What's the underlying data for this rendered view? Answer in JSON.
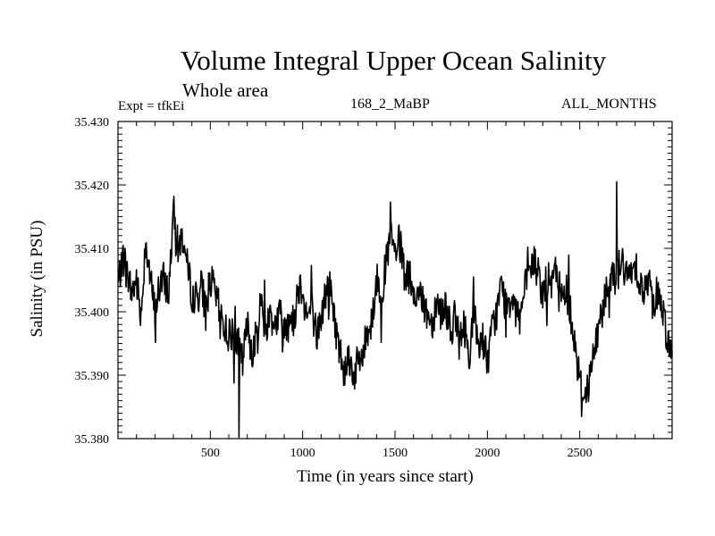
{
  "chart_data": {
    "type": "line",
    "title": "Volume Integral Upper Ocean Salinity",
    "subtitle": "Whole area",
    "annotations": {
      "left": "Expt = tfkEi",
      "center": "168_2_MaBP",
      "right": "ALL_MONTHS"
    },
    "xlabel": "Time (in years since start)",
    "ylabel": "Salinity (in PSU)",
    "xlim": [
      0,
      3000
    ],
    "ylim": [
      35.38,
      35.43
    ],
    "xticks": [
      500,
      1000,
      1500,
      2000,
      2500
    ],
    "yticks": [
      "35.380",
      "35.390",
      "35.400",
      "35.410",
      "35.420",
      "35.430"
    ],
    "grid": false,
    "series": [
      {
        "color": "#000000",
        "x": [
          0,
          25,
          50,
          75,
          100,
          125,
          150,
          175,
          200,
          225,
          250,
          275,
          300,
          325,
          350,
          375,
          400,
          425,
          450,
          475,
          500,
          525,
          550,
          575,
          600,
          625,
          650,
          675,
          700,
          725,
          750,
          775,
          800,
          825,
          850,
          875,
          900,
          925,
          950,
          975,
          1000,
          1025,
          1050,
          1075,
          1100,
          1125,
          1150,
          1175,
          1200,
          1225,
          1250,
          1275,
          1300,
          1325,
          1350,
          1375,
          1400,
          1425,
          1450,
          1475,
          1500,
          1525,
          1550,
          1575,
          1600,
          1625,
          1650,
          1675,
          1700,
          1725,
          1750,
          1775,
          1800,
          1825,
          1850,
          1875,
          1900,
          1925,
          1950,
          1975,
          2000,
          2025,
          2050,
          2075,
          2100,
          2125,
          2150,
          2175,
          2200,
          2225,
          2250,
          2275,
          2300,
          2325,
          2350,
          2375,
          2400,
          2425,
          2450,
          2475,
          2500,
          2525,
          2550,
          2575,
          2600,
          2625,
          2650,
          2675,
          2700,
          2725,
          2750,
          2775,
          2800,
          2825,
          2850,
          2875,
          2900,
          2925,
          2950,
          2975,
          3000
        ],
        "values": [
          35.404,
          35.409,
          35.406,
          35.403,
          35.405,
          35.399,
          35.412,
          35.405,
          35.4,
          35.404,
          35.405,
          35.403,
          35.416,
          35.41,
          35.412,
          35.407,
          35.403,
          35.402,
          35.404,
          35.401,
          35.405,
          35.403,
          35.4,
          35.398,
          35.396,
          35.397,
          35.395,
          35.392,
          35.398,
          35.394,
          35.396,
          35.402,
          35.397,
          35.4,
          35.398,
          35.4,
          35.397,
          35.4,
          35.398,
          35.404,
          35.404,
          35.399,
          35.401,
          35.396,
          35.399,
          35.403,
          35.404,
          35.398,
          35.394,
          35.391,
          35.393,
          35.39,
          35.392,
          35.393,
          35.397,
          35.399,
          35.405,
          35.403,
          35.407,
          35.412,
          35.409,
          35.411,
          35.406,
          35.405,
          35.402,
          35.404,
          35.401,
          35.4,
          35.398,
          35.402,
          35.4,
          35.401,
          35.397,
          35.399,
          35.395,
          35.398,
          35.393,
          35.4,
          35.395,
          35.396,
          35.392,
          35.397,
          35.4,
          35.404,
          35.401,
          35.402,
          35.403,
          35.399,
          35.403,
          35.406,
          35.408,
          35.406,
          35.403,
          35.405,
          35.404,
          35.407,
          35.402,
          35.404,
          35.4,
          35.395,
          35.389,
          35.387,
          35.389,
          35.393,
          35.397,
          35.401,
          35.404,
          35.407,
          35.405,
          35.409,
          35.405,
          35.406,
          35.408,
          35.405,
          35.403,
          35.405,
          35.401,
          35.404,
          35.4,
          35.396,
          35.393
        ],
        "notable_points": [
          {
            "x": 655,
            "y": 35.3802
          },
          {
            "x": 2700,
            "y": 35.4205
          },
          {
            "x": 1475,
            "y": 35.4173
          },
          {
            "x": 300,
            "y": 35.4172
          },
          {
            "x": 2510,
            "y": 35.3835
          }
        ]
      }
    ]
  }
}
